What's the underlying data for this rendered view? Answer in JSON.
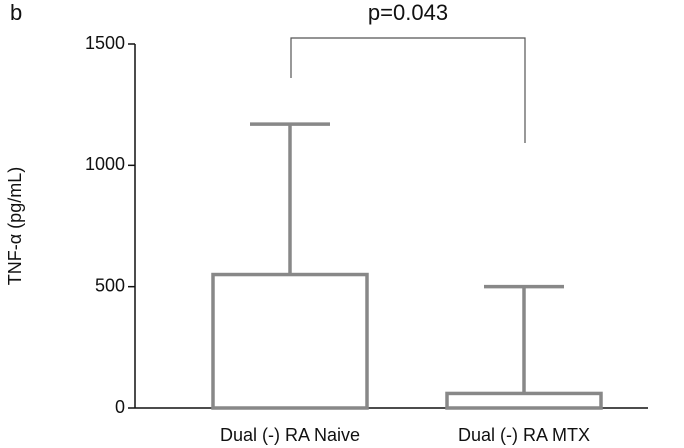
{
  "chart_data": {
    "type": "bar",
    "panel_label": "b",
    "annotation": "p=0.043",
    "ylabel": "TNF-α (pg/mL)",
    "categories": [
      "Dual (-) RA Naive",
      "Dual (-) RA MTX"
    ],
    "values": [
      550,
      60
    ],
    "errors": [
      620,
      440
    ],
    "color": "#888888",
    "ylim": [
      0,
      1500
    ],
    "yticks": [
      0,
      500,
      1000,
      1500
    ]
  }
}
